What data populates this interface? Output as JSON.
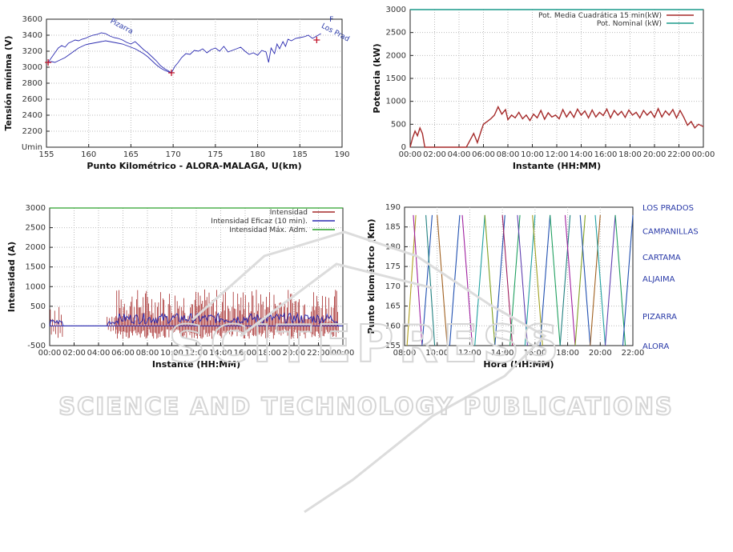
{
  "watermark": {
    "line1": "SCITEPRESS",
    "line2": "SCIENCE AND TECHNOLOGY PUBLICATIONS"
  },
  "chart_data": [
    {
      "type": "line",
      "xlabel": "Punto Kilométrico - ALORA-MALAGA, U(km)",
      "ylabel": "Tensión mínima (V)",
      "xlim": [
        155,
        190
      ],
      "ylim": [
        2000,
        3600
      ],
      "xticks": [
        "155",
        "160",
        "165",
        "170",
        "175",
        "180",
        "185",
        "190"
      ],
      "yticks": [
        "Umin",
        "2200",
        "2400",
        "2600",
        "2800",
        "3000",
        "3200",
        "3400",
        "3600"
      ],
      "grid": true,
      "annotations": [
        {
          "text": "Pizarra",
          "x": 162.5,
          "y": 3560
        },
        {
          "text": "Los Prad",
          "x": 187.5,
          "y": 3500
        },
        {
          "text": "F",
          "x": 188.5,
          "y": 3570
        }
      ],
      "markers": [
        {
          "x": 155.2,
          "y": 3060
        },
        {
          "x": 169.8,
          "y": 2930
        },
        {
          "x": 187.0,
          "y": 3340
        }
      ],
      "series": [
        {
          "color": "#2b2bb0",
          "x": [
            155.2,
            155.6,
            156,
            156.4,
            156.8,
            157.2,
            157.6,
            158,
            158.4,
            158.8,
            159.2,
            159.6,
            160,
            160.5,
            161,
            161.5,
            162,
            162.5,
            163,
            163.5,
            164,
            164.5,
            165,
            165.5,
            166,
            166.5,
            167,
            167.5,
            168,
            168.5,
            169,
            169.5,
            169.8,
            170.2,
            170.6,
            171,
            171.5,
            172,
            172.5,
            173,
            173.5,
            174,
            174.5,
            175,
            175.5,
            176,
            176.5,
            177,
            177.5,
            178,
            178.5,
            179,
            179.5,
            180,
            180.5,
            181,
            181.3,
            181.6,
            182,
            182.3,
            182.6,
            183,
            183.3,
            183.6,
            184,
            184.5,
            185,
            185.5,
            186,
            186.5,
            187,
            187.5
          ],
          "y": [
            3060,
            3120,
            3180,
            3240,
            3270,
            3250,
            3300,
            3320,
            3340,
            3330,
            3350,
            3360,
            3380,
            3400,
            3410,
            3430,
            3420,
            3390,
            3370,
            3360,
            3340,
            3310,
            3290,
            3320,
            3270,
            3220,
            3180,
            3130,
            3080,
            3020,
            2980,
            2950,
            2930,
            3010,
            3060,
            3120,
            3170,
            3160,
            3210,
            3200,
            3230,
            3180,
            3220,
            3240,
            3200,
            3260,
            3190,
            3210,
            3230,
            3250,
            3200,
            3160,
            3180,
            3150,
            3210,
            3190,
            3060,
            3240,
            3170,
            3290,
            3230,
            3320,
            3260,
            3350,
            3330,
            3360,
            3370,
            3380,
            3400,
            3360,
            3390,
            3420
          ]
        },
        {
          "color": "#2b2bb0",
          "x": [
            155.2,
            155.6,
            156,
            156.4,
            156.8,
            157.2,
            157.6,
            158,
            158.4,
            158.8,
            159.2,
            159.6,
            160,
            160.5,
            161,
            161.5,
            162,
            162.5,
            163,
            163.5,
            164,
            164.5,
            165,
            165.5,
            166,
            166.5,
            167,
            167.5,
            168,
            168.5,
            169,
            169.5,
            169.8
          ],
          "y": [
            3060,
            3070,
            3060,
            3080,
            3100,
            3120,
            3150,
            3180,
            3210,
            3240,
            3260,
            3280,
            3290,
            3300,
            3310,
            3320,
            3330,
            3320,
            3310,
            3300,
            3290,
            3270,
            3250,
            3230,
            3200,
            3170,
            3130,
            3080,
            3030,
            2990,
            2960,
            2940,
            2930
          ]
        }
      ]
    },
    {
      "type": "line",
      "xlabel": "Instante (HH:MM)",
      "ylabel": "Potencia (kW)",
      "xlim": [
        0,
        24
      ],
      "ylim": [
        0,
        3000
      ],
      "xticks": [
        "00:00",
        "02:00",
        "04:00",
        "06:00",
        "08:00",
        "10:00",
        "12:00",
        "14:00",
        "16:00",
        "18:00",
        "20:00",
        "22:00",
        "00:00"
      ],
      "yticks": [
        "0",
        "500",
        "1000",
        "1500",
        "2000",
        "2500",
        "3000"
      ],
      "grid": true,
      "legend": "top-right",
      "series": [
        {
          "name": "Pot. Media Cuadrática 15 min(kW)",
          "color": "#a52a2a",
          "x": [
            0,
            0.2,
            0.4,
            0.6,
            0.8,
            1.0,
            1.2,
            1.4,
            1.6,
            1.8,
            2.0,
            3.0,
            4.0,
            4.6,
            4.9,
            5.2,
            5.5,
            5.8,
            6.0,
            6.3,
            6.6,
            6.9,
            7.2,
            7.5,
            7.8,
            8.0,
            8.3,
            8.6,
            8.9,
            9.2,
            9.5,
            9.8,
            10.1,
            10.4,
            10.7,
            11.0,
            11.3,
            11.6,
            11.9,
            12.2,
            12.5,
            12.8,
            13.1,
            13.4,
            13.7,
            14.0,
            14.3,
            14.6,
            14.9,
            15.2,
            15.5,
            15.8,
            16.1,
            16.4,
            16.7,
            17.0,
            17.3,
            17.6,
            17.9,
            18.2,
            18.5,
            18.8,
            19.1,
            19.4,
            19.7,
            20.0,
            20.3,
            20.6,
            20.9,
            21.2,
            21.5,
            21.8,
            22.1,
            22.4,
            22.7,
            23.0,
            23.3,
            23.6,
            24.0
          ],
          "y": [
            0,
            200,
            350,
            250,
            420,
            300,
            0,
            0,
            0,
            0,
            0,
            0,
            0,
            0,
            150,
            300,
            100,
            350,
            500,
            560,
            620,
            700,
            880,
            720,
            820,
            600,
            700,
            640,
            760,
            620,
            700,
            580,
            720,
            640,
            800,
            610,
            750,
            660,
            700,
            620,
            820,
            660,
            780,
            650,
            830,
            700,
            790,
            640,
            810,
            660,
            760,
            690,
            830,
            640,
            800,
            700,
            780,
            650,
            810,
            700,
            760,
            640,
            800,
            700,
            780,
            650,
            840,
            660,
            790,
            700,
            820,
            640,
            800,
            650,
            480,
            560,
            420,
            500,
            450
          ]
        },
        {
          "name": "Pot. Nominal (kW)",
          "color": "#1a9a8a",
          "x": [
            0,
            24
          ],
          "y": [
            3000,
            3000
          ]
        }
      ]
    },
    {
      "type": "line",
      "xlabel": "Instante (HH:MM)",
      "ylabel": "Intensidad (A)",
      "xlim": [
        0,
        24
      ],
      "ylim": [
        -500,
        3000
      ],
      "xticks": [
        "00:00",
        "02:00",
        "04:00",
        "06:00",
        "08:00",
        "10:00",
        "12:00",
        "14:00",
        "16:00",
        "18:00",
        "20:00",
        "22:00",
        "00:00"
      ],
      "yticks": [
        "-500",
        "0",
        "500",
        "1000",
        "1500",
        "2000",
        "2500",
        "3000"
      ],
      "grid": true,
      "legend": "top-right",
      "series": [
        {
          "name": "Intensidad",
          "color": "#a52a2a"
        },
        {
          "name": "Intensidad Eficaz (10 min).",
          "color": "#2b2bb0"
        },
        {
          "name": "Intensidad Máx. Adm.",
          "color": "#2aa02a",
          "x": [
            0,
            24
          ],
          "y": [
            3000,
            3000
          ]
        }
      ]
    },
    {
      "type": "line",
      "xlabel": "Hora (HH:MM)",
      "ylabel": "Punto kilométrico (Km)",
      "xlim": [
        5.6,
        23.8
      ],
      "ylim": [
        155,
        190
      ],
      "xticks": [
        "08:00",
        "10:00",
        "12:00",
        "14:00",
        "16:00",
        "18:00",
        "20:00",
        "22:00"
      ],
      "yticks": [
        "155",
        "160",
        "165",
        "170",
        "175",
        "180",
        "185",
        "190"
      ],
      "grid": true,
      "stations": [
        {
          "name": "LOS PRADOS",
          "km": 190
        },
        {
          "name": "CAMPANILLAS",
          "km": 184
        },
        {
          "name": "CARTAMA",
          "km": 177.5
        },
        {
          "name": "ALJAIMA",
          "km": 172
        },
        {
          "name": "PIZARRA",
          "km": 162.5
        },
        {
          "name": "ALORA",
          "km": 155
        }
      ],
      "trains": [
        {
          "t0": 5.8,
          "t1": 6.5,
          "dir": "up",
          "color": "#b0a020"
        },
        {
          "t0": 6.3,
          "t1": 7.0,
          "dir": "down",
          "color": "#a020a0"
        },
        {
          "t0": 7.0,
          "t1": 7.8,
          "dir": "up",
          "color": "#2050b0"
        },
        {
          "t0": 7.3,
          "t1": 8.0,
          "dir": "down",
          "color": "#208080"
        },
        {
          "t0": 8.2,
          "t1": 9.0,
          "dir": "down",
          "color": "#a06020"
        },
        {
          "t0": 9.2,
          "t1": 10.0,
          "dir": "up",
          "color": "#2050b0"
        },
        {
          "t0": 10.2,
          "t1": 11.0,
          "dir": "down",
          "color": "#a020a0"
        },
        {
          "t0": 11.2,
          "t1": 12.0,
          "dir": "up",
          "color": "#20a0a0"
        },
        {
          "t0": 12.0,
          "t1": 12.8,
          "dir": "down",
          "color": "#80a020"
        },
        {
          "t0": 12.8,
          "t1": 13.6,
          "dir": "up",
          "color": "#2050b0"
        },
        {
          "t0": 13.4,
          "t1": 14.2,
          "dir": "down",
          "color": "#a02060"
        },
        {
          "t0": 14.0,
          "t1": 14.8,
          "dir": "up",
          "color": "#20a060"
        },
        {
          "t0": 14.6,
          "t1": 15.4,
          "dir": "down",
          "color": "#6040b0"
        },
        {
          "t0": 15.2,
          "t1": 16.0,
          "dir": "up",
          "color": "#20a0a0"
        },
        {
          "t0": 15.8,
          "t1": 16.6,
          "dir": "down",
          "color": "#a0a020"
        },
        {
          "t0": 16.4,
          "t1": 17.2,
          "dir": "up",
          "color": "#2050b0"
        },
        {
          "t0": 17.2,
          "t1": 18.0,
          "dir": "down",
          "color": "#20a060"
        },
        {
          "t0": 18.0,
          "t1": 18.8,
          "dir": "up",
          "color": "#208080"
        },
        {
          "t0": 18.4,
          "t1": 19.2,
          "dir": "down",
          "color": "#a020a0"
        },
        {
          "t0": 19.2,
          "t1": 20.0,
          "dir": "up",
          "color": "#80a020"
        },
        {
          "t0": 19.6,
          "t1": 20.4,
          "dir": "down",
          "color": "#2050b0"
        },
        {
          "t0": 20.4,
          "t1": 21.2,
          "dir": "up",
          "color": "#a06020"
        },
        {
          "t0": 20.8,
          "t1": 21.6,
          "dir": "down",
          "color": "#20a0a0"
        },
        {
          "t0": 21.6,
          "t1": 22.4,
          "dir": "up",
          "color": "#6040b0"
        },
        {
          "t0": 22.4,
          "t1": 23.2,
          "dir": "down",
          "color": "#20a060"
        },
        {
          "t0": 23.0,
          "t1": 23.8,
          "dir": "up",
          "color": "#2050b0"
        }
      ]
    }
  ]
}
